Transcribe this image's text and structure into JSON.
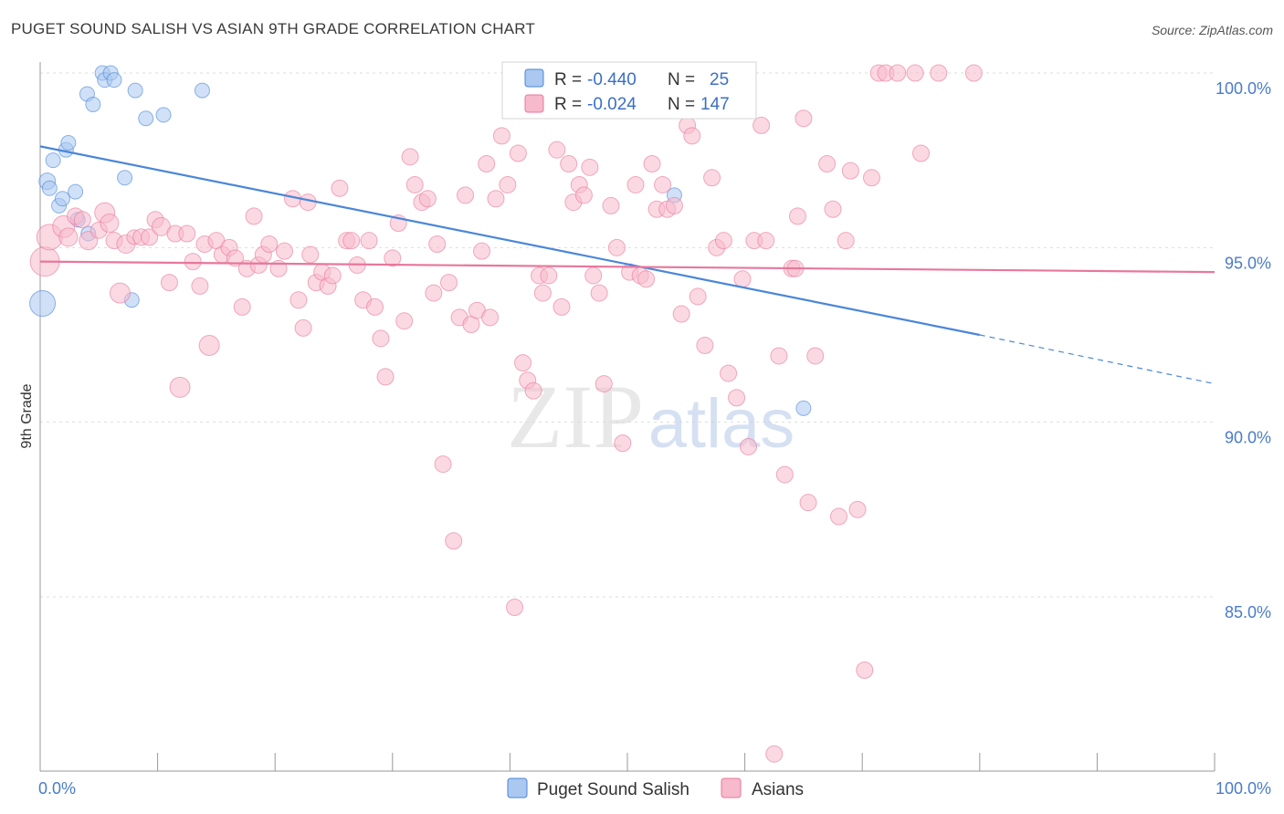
{
  "title": "PUGET SOUND SALISH VS ASIAN 9TH GRADE CORRELATION CHART",
  "source": "Source: ZipAtlas.com",
  "watermark": {
    "zip": "ZIP",
    "atlas": "atlas"
  },
  "chart_data": {
    "type": "scatter",
    "title": "PUGET SOUND SALISH VS ASIAN 9TH GRADE CORRELATION CHART",
    "xlabel": "",
    "ylabel": "9th Grade",
    "xlim": [
      0,
      100
    ],
    "ylim": [
      80.5,
      101
    ],
    "x_tick_labels": [
      "0.0%",
      "100.0%"
    ],
    "y_ticks": [
      85,
      90,
      95,
      100
    ],
    "y_tick_labels": [
      "85.0%",
      "90.0%",
      "95.0%",
      "100.0%"
    ],
    "legend_position": "top-center",
    "series": [
      {
        "name": "Puget Sound Salish",
        "color": "#4a86d8",
        "fill": "#aac8f0",
        "R": "-0.440",
        "N": "25",
        "trend": {
          "x0": 0,
          "y0": 97.9,
          "x1": 80,
          "y1": 92.5,
          "dash_to_x": 100,
          "dash_to_y": 91.1
        },
        "points": [
          [
            0.2,
            93.4,
            14
          ],
          [
            0.6,
            96.9,
            9
          ],
          [
            0.8,
            96.7,
            8
          ],
          [
            1.1,
            97.5,
            8
          ],
          [
            1.6,
            96.2,
            8
          ],
          [
            1.9,
            96.4,
            8
          ],
          [
            2.2,
            97.8,
            8
          ],
          [
            2.4,
            98.0,
            8
          ],
          [
            3.0,
            96.6,
            8
          ],
          [
            3.2,
            95.8,
            8
          ],
          [
            4.1,
            95.4,
            8
          ],
          [
            4.0,
            99.4,
            8
          ],
          [
            4.5,
            99.1,
            8
          ],
          [
            5.3,
            100.0,
            8
          ],
          [
            5.5,
            99.8,
            8
          ],
          [
            6.0,
            100.0,
            8
          ],
          [
            6.3,
            99.8,
            8
          ],
          [
            7.2,
            97.0,
            8
          ],
          [
            7.8,
            93.5,
            8
          ],
          [
            8.1,
            99.5,
            8
          ],
          [
            9.0,
            98.7,
            8
          ],
          [
            10.5,
            98.8,
            8
          ],
          [
            13.8,
            99.5,
            8
          ],
          [
            54.0,
            96.5,
            8
          ],
          [
            65.0,
            90.4,
            8
          ]
        ]
      },
      {
        "name": "Asians",
        "color": "#e8779b",
        "fill": "#f7b9cc",
        "R": "-0.024",
        "N": "147",
        "trend": {
          "x0": 0,
          "y0": 94.6,
          "x1": 100,
          "y1": 94.3
        },
        "points": [
          [
            0.4,
            94.6,
            16
          ],
          [
            0.8,
            95.3,
            14
          ],
          [
            2.0,
            95.6,
            12
          ],
          [
            2.4,
            95.3,
            10
          ],
          [
            3.0,
            95.9,
            9
          ],
          [
            3.6,
            95.8,
            9
          ],
          [
            4.1,
            95.2,
            10
          ],
          [
            5.0,
            95.5,
            9
          ],
          [
            5.5,
            96.0,
            11
          ],
          [
            5.9,
            95.7,
            10
          ],
          [
            6.3,
            95.2,
            9
          ],
          [
            7.3,
            95.1,
            10
          ],
          [
            6.8,
            93.7,
            11
          ],
          [
            8.0,
            95.3,
            8
          ],
          [
            8.6,
            95.3,
            9
          ],
          [
            9.3,
            95.3,
            9
          ],
          [
            9.8,
            95.8,
            9
          ],
          [
            10.3,
            95.6,
            10
          ],
          [
            11.0,
            94.0,
            9
          ],
          [
            11.5,
            95.4,
            9
          ],
          [
            11.9,
            91.0,
            11
          ],
          [
            12.5,
            95.4,
            9
          ],
          [
            13.0,
            94.6,
            9
          ],
          [
            13.6,
            93.9,
            9
          ],
          [
            14.0,
            95.1,
            9
          ],
          [
            14.4,
            92.2,
            11
          ],
          [
            15.0,
            95.2,
            9
          ],
          [
            15.5,
            94.8,
            9
          ],
          [
            16.1,
            95.0,
            9
          ],
          [
            16.6,
            94.7,
            9
          ],
          [
            17.2,
            93.3,
            9
          ],
          [
            17.6,
            94.4,
            9
          ],
          [
            18.2,
            95.9,
            9
          ],
          [
            18.6,
            94.5,
            9
          ],
          [
            19.0,
            94.8,
            9
          ],
          [
            19.5,
            95.1,
            9
          ],
          [
            20.3,
            94.4,
            9
          ],
          [
            20.8,
            94.9,
            9
          ],
          [
            21.5,
            96.4,
            9
          ],
          [
            22.0,
            93.5,
            9
          ],
          [
            22.4,
            92.7,
            9
          ],
          [
            23.0,
            94.8,
            9
          ],
          [
            23.5,
            94.0,
            9
          ],
          [
            24.0,
            94.3,
            9
          ],
          [
            24.5,
            93.9,
            9
          ],
          [
            24.9,
            94.2,
            9
          ],
          [
            25.5,
            96.7,
            9
          ],
          [
            26.1,
            95.2,
            9
          ],
          [
            26.5,
            95.2,
            9
          ],
          [
            27.0,
            94.5,
            9
          ],
          [
            27.5,
            93.5,
            9
          ],
          [
            28.0,
            95.2,
            9
          ],
          [
            28.5,
            93.3,
            9
          ],
          [
            29.0,
            92.4,
            9
          ],
          [
            29.4,
            91.3,
            9
          ],
          [
            30.0,
            94.7,
            9
          ],
          [
            30.5,
            95.7,
            9
          ],
          [
            31.0,
            92.9,
            9
          ],
          [
            31.5,
            97.6,
            9
          ],
          [
            31.9,
            96.8,
            9
          ],
          [
            32.5,
            96.3,
            9
          ],
          [
            33.0,
            96.4,
            9
          ],
          [
            33.5,
            93.7,
            9
          ],
          [
            33.8,
            95.1,
            9
          ],
          [
            34.3,
            88.8,
            9
          ],
          [
            34.8,
            94.0,
            9
          ],
          [
            35.2,
            86.6,
            9
          ],
          [
            35.7,
            93.0,
            9
          ],
          [
            36.2,
            96.5,
            9
          ],
          [
            36.7,
            92.8,
            9
          ],
          [
            37.2,
            93.2,
            9
          ],
          [
            37.6,
            94.9,
            9
          ],
          [
            38.0,
            97.4,
            9
          ],
          [
            38.3,
            93.0,
            9
          ],
          [
            38.8,
            96.4,
            9
          ],
          [
            39.3,
            98.2,
            9
          ],
          [
            39.8,
            96.8,
            9
          ],
          [
            40.4,
            84.7,
            9
          ],
          [
            40.7,
            97.7,
            9
          ],
          [
            41.1,
            91.7,
            9
          ],
          [
            41.5,
            91.2,
            9
          ],
          [
            42.0,
            90.9,
            9
          ],
          [
            42.5,
            94.2,
            9
          ],
          [
            42.8,
            93.7,
            9
          ],
          [
            43.3,
            94.2,
            9
          ],
          [
            44.0,
            97.8,
            9
          ],
          [
            44.4,
            93.3,
            9
          ],
          [
            45.0,
            97.4,
            9
          ],
          [
            45.4,
            96.3,
            9
          ],
          [
            45.9,
            96.8,
            9
          ],
          [
            46.3,
            96.5,
            9
          ],
          [
            46.8,
            97.3,
            9
          ],
          [
            47.1,
            94.2,
            9
          ],
          [
            47.6,
            93.7,
            9
          ],
          [
            48.0,
            91.1,
            9
          ],
          [
            48.6,
            96.2,
            9
          ],
          [
            49.1,
            95.0,
            9
          ],
          [
            49.6,
            89.4,
            9
          ],
          [
            50.2,
            94.3,
            9
          ],
          [
            50.7,
            96.8,
            9
          ],
          [
            51.1,
            94.2,
            9
          ],
          [
            51.6,
            94.1,
            9
          ],
          [
            52.1,
            97.4,
            9
          ],
          [
            52.5,
            96.1,
            9
          ],
          [
            53.0,
            96.8,
            9
          ],
          [
            53.4,
            96.1,
            9
          ],
          [
            54.0,
            96.2,
            9
          ],
          [
            54.6,
            93.1,
            9
          ],
          [
            55.1,
            98.5,
            9
          ],
          [
            55.5,
            98.2,
            9
          ],
          [
            56.0,
            93.6,
            9
          ],
          [
            56.6,
            92.2,
            9
          ],
          [
            57.2,
            97.0,
            9
          ],
          [
            57.6,
            95.0,
            9
          ],
          [
            58.2,
            95.2,
            9
          ],
          [
            58.6,
            91.4,
            9
          ],
          [
            59.3,
            90.7,
            9
          ],
          [
            59.8,
            94.1,
            9
          ],
          [
            60.3,
            89.3,
            9
          ],
          [
            60.8,
            95.2,
            9
          ],
          [
            61.4,
            98.5,
            9
          ],
          [
            61.8,
            95.2,
            9
          ],
          [
            62.5,
            80.5,
            9
          ],
          [
            62.9,
            91.9,
            9
          ],
          [
            63.4,
            88.5,
            9
          ],
          [
            64.0,
            94.4,
            9
          ],
          [
            64.5,
            95.9,
            9
          ],
          [
            65.0,
            98.7,
            9
          ],
          [
            65.4,
            87.7,
            9
          ],
          [
            66.0,
            91.9,
            9
          ],
          [
            67.0,
            97.4,
            9
          ],
          [
            67.5,
            96.1,
            9
          ],
          [
            68.0,
            87.3,
            9
          ],
          [
            68.6,
            95.2,
            9
          ],
          [
            69.0,
            97.2,
            9
          ],
          [
            69.6,
            87.5,
            9
          ],
          [
            70.2,
            82.9,
            9
          ],
          [
            70.8,
            97.0,
            9
          ],
          [
            71.4,
            100.0,
            9
          ],
          [
            72.0,
            100.0,
            9
          ],
          [
            73.0,
            100.0,
            9
          ],
          [
            74.5,
            100.0,
            9
          ],
          [
            75.0,
            97.7,
            9
          ],
          [
            76.5,
            100.0,
            9
          ],
          [
            79.5,
            100.0,
            9
          ],
          [
            64.3,
            94.4,
            9
          ],
          [
            22.8,
            96.3,
            9
          ]
        ]
      }
    ]
  }
}
